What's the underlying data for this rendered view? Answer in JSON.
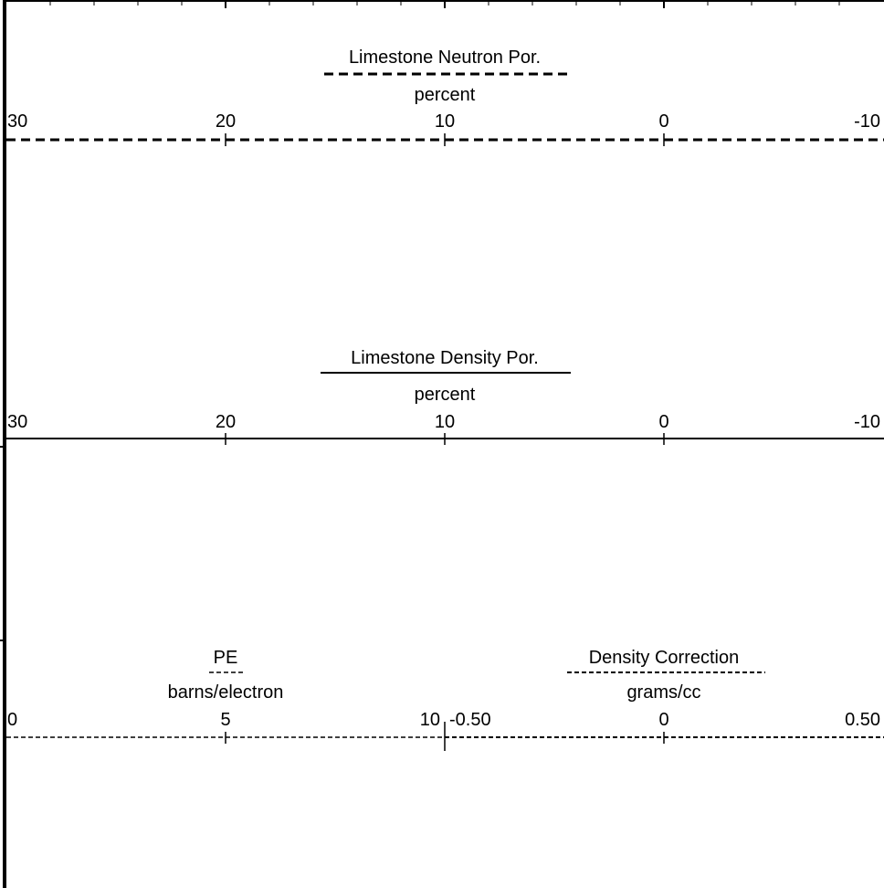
{
  "tracks": [
    {
      "title": "Limestone Neutron Por.",
      "unit": "percent",
      "line_style": "dashed",
      "scale": [
        30,
        -10
      ],
      "tick_labels": [
        "30",
        "20",
        "10",
        "0",
        "-10"
      ]
    },
    {
      "title": "Limestone Density Por.",
      "unit": "percent",
      "line_style": "solid",
      "scale": [
        30,
        -10
      ],
      "tick_labels": [
        "30",
        "20",
        "10",
        "0",
        "-10"
      ]
    },
    {
      "title": "PE",
      "unit": "barns/electron",
      "line_style": "fine-dashed",
      "scale": [
        0,
        10
      ],
      "tick_labels": [
        "0",
        "5",
        "10"
      ]
    },
    {
      "title": "Density Correction",
      "unit": "grams/cc",
      "line_style": "fine-dashed",
      "scale": [
        -0.5,
        0.5
      ],
      "tick_labels": [
        "-0.50",
        "0",
        "0.50"
      ]
    }
  ],
  "chart_data": [
    {
      "type": "table",
      "title": "Limestone Neutron Por.",
      "xlabel": "percent",
      "xlim": [
        30,
        -10
      ],
      "ticks": [
        30,
        20,
        10,
        0,
        -10
      ]
    },
    {
      "type": "table",
      "title": "Limestone Density Por.",
      "xlabel": "percent",
      "xlim": [
        30,
        -10
      ],
      "ticks": [
        30,
        20,
        10,
        0,
        -10
      ]
    },
    {
      "type": "table",
      "title": "PE",
      "xlabel": "barns/electron",
      "xlim": [
        0,
        10
      ],
      "ticks": [
        0,
        5,
        10
      ]
    },
    {
      "type": "table",
      "title": "Density Correction",
      "xlabel": "grams/cc",
      "xlim": [
        -0.5,
        0.5
      ],
      "ticks": [
        -0.5,
        0,
        0.5
      ]
    }
  ]
}
